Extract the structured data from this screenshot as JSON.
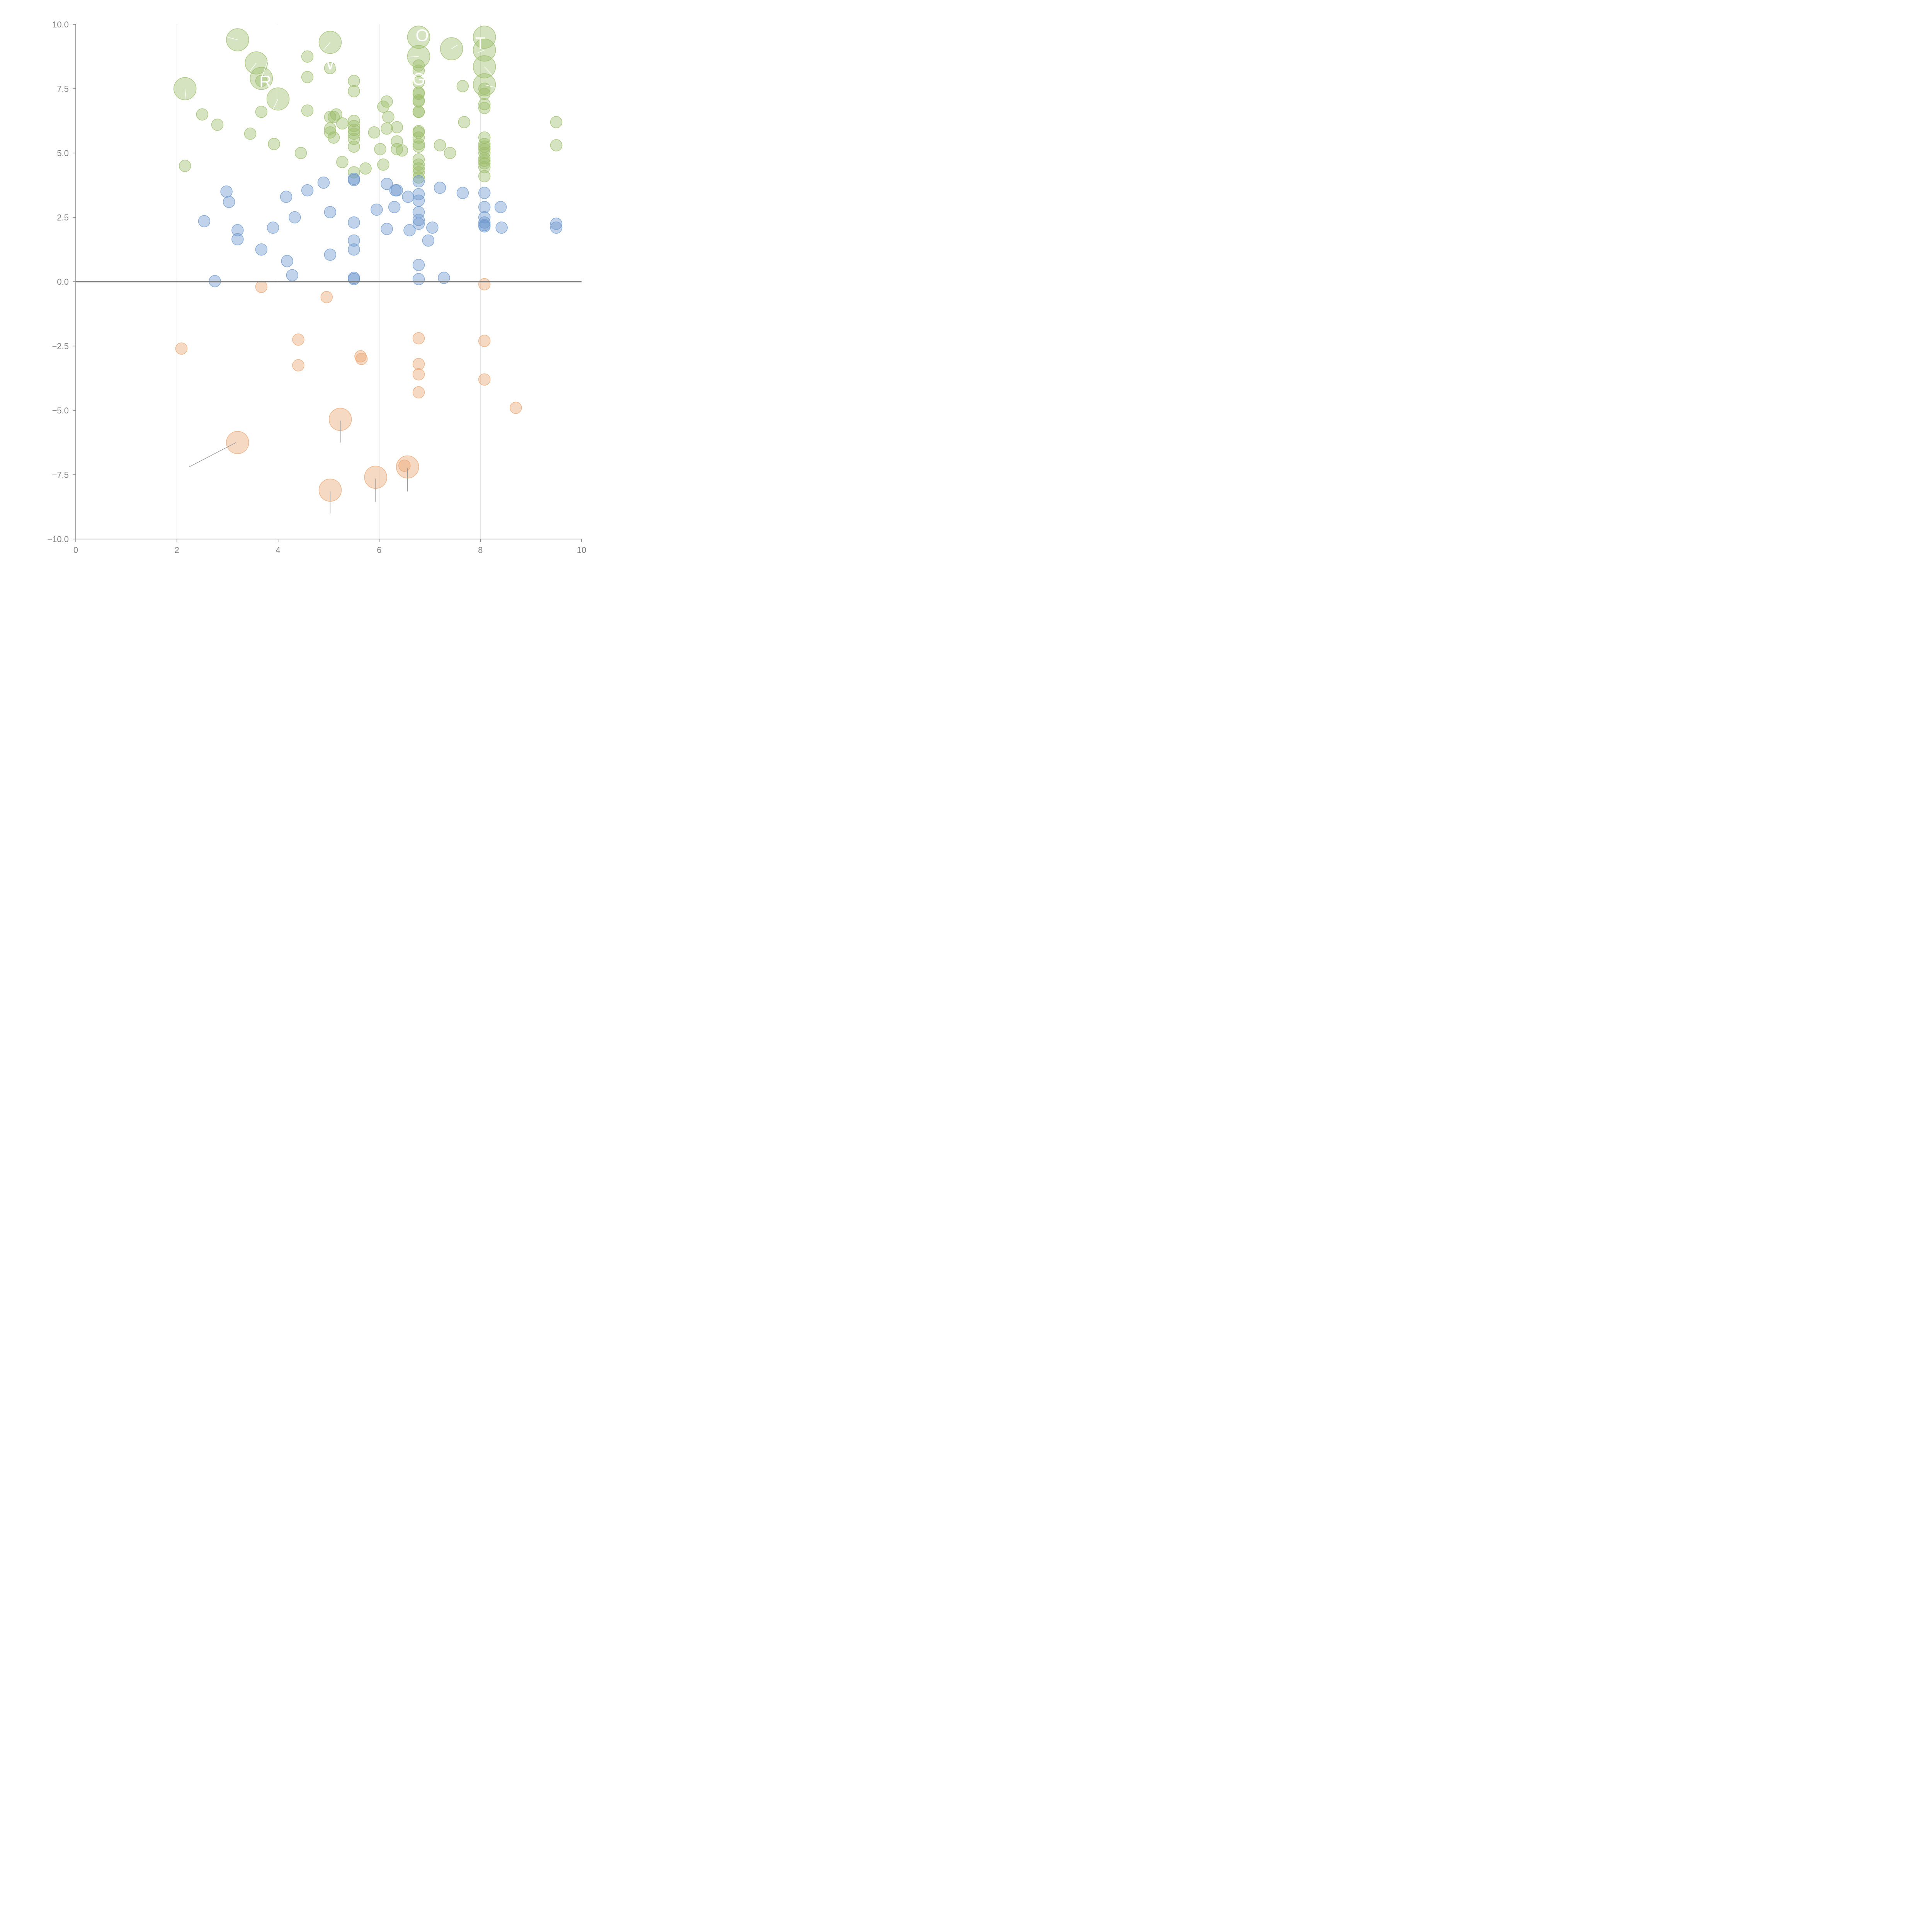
{
  "chart_data": {
    "type": "scatter",
    "title": "",
    "xlabel": "",
    "ylabel": "",
    "xlim": [
      0,
      10
    ],
    "ylim": [
      -10,
      10
    ],
    "x_ticks": [
      "0",
      "2",
      "4",
      "6",
      "8",
      "10"
    ],
    "y_ticks": [
      "10.0",
      "7.5",
      "5.0",
      "2.5",
      "0.0",
      "−2.5",
      "−5.0",
      "−7.5",
      "−10.0"
    ],
    "grid": "vertical",
    "baseline": 0,
    "series": [
      {
        "color": "#9cbd6a",
        "points": [
          [
            3.2,
            9.4,
            "large"
          ],
          [
            5.03,
            9.3,
            "large"
          ],
          [
            3.57,
            8.5,
            "large"
          ],
          [
            3.67,
            7.9,
            "large"
          ],
          [
            2.16,
            7.5,
            "large"
          ],
          [
            4.0,
            7.1,
            "large"
          ],
          [
            6.78,
            9.5,
            "large"
          ],
          [
            6.78,
            8.75,
            "large"
          ],
          [
            7.43,
            9.05,
            "large"
          ],
          [
            8.08,
            9.5,
            "large"
          ],
          [
            8.08,
            9.0,
            "large"
          ],
          [
            8.08,
            8.35,
            "large"
          ],
          [
            8.08,
            7.65,
            "large"
          ],
          [
            4.58,
            8.75
          ],
          [
            4.58,
            7.95
          ],
          [
            4.58,
            6.65
          ],
          [
            5.03,
            8.3
          ],
          [
            3.67,
            6.6
          ],
          [
            3.67,
            7.8
          ],
          [
            2.5,
            6.5
          ],
          [
            2.8,
            6.1
          ],
          [
            3.45,
            5.75
          ],
          [
            3.92,
            5.35
          ],
          [
            4.45,
            5.0
          ],
          [
            2.16,
            4.5
          ],
          [
            5.03,
            6.4
          ],
          [
            5.1,
            6.4
          ],
          [
            5.15,
            6.5
          ],
          [
            5.03,
            5.95
          ],
          [
            5.03,
            5.8
          ],
          [
            5.1,
            5.6
          ],
          [
            5.27,
            6.15
          ],
          [
            5.27,
            4.65
          ],
          [
            5.5,
            7.8
          ],
          [
            5.5,
            7.4
          ],
          [
            5.5,
            6.25
          ],
          [
            5.5,
            6.05
          ],
          [
            5.5,
            5.9
          ],
          [
            5.5,
            5.75
          ],
          [
            5.5,
            5.55
          ],
          [
            5.5,
            5.25
          ],
          [
            5.5,
            4.25
          ],
          [
            5.73,
            4.4
          ],
          [
            5.9,
            5.8
          ],
          [
            6.02,
            5.15
          ],
          [
            6.08,
            4.55
          ],
          [
            6.08,
            6.8
          ],
          [
            6.15,
            7.0
          ],
          [
            6.18,
            6.4
          ],
          [
            6.15,
            5.95
          ],
          [
            6.35,
            6.0
          ],
          [
            6.35,
            5.45
          ],
          [
            6.35,
            5.15
          ],
          [
            6.45,
            5.1
          ],
          [
            6.78,
            8.4
          ],
          [
            6.78,
            8.2
          ],
          [
            6.78,
            7.75
          ],
          [
            6.78,
            7.35
          ],
          [
            6.78,
            7.3
          ],
          [
            6.78,
            7.05
          ],
          [
            6.78,
            7.0
          ],
          [
            6.78,
            6.6
          ],
          [
            6.78,
            6.6
          ],
          [
            6.78,
            5.85
          ],
          [
            6.78,
            5.8
          ],
          [
            6.78,
            5.6
          ],
          [
            6.78,
            5.35
          ],
          [
            6.78,
            5.25
          ],
          [
            6.78,
            4.75
          ],
          [
            6.78,
            4.55
          ],
          [
            6.78,
            4.4
          ],
          [
            6.78,
            4.25
          ],
          [
            6.78,
            4.05
          ],
          [
            7.2,
            5.3
          ],
          [
            7.4,
            5.0
          ],
          [
            7.65,
            7.6
          ],
          [
            7.68,
            6.2
          ],
          [
            8.08,
            7.5
          ],
          [
            8.08,
            7.3
          ],
          [
            8.08,
            6.9
          ],
          [
            8.08,
            6.75
          ],
          [
            8.08,
            5.6
          ],
          [
            8.08,
            5.35
          ],
          [
            8.08,
            5.25
          ],
          [
            8.08,
            5.15
          ],
          [
            8.08,
            5.0
          ],
          [
            8.08,
            4.8
          ],
          [
            8.08,
            4.7
          ],
          [
            8.08,
            4.6
          ],
          [
            8.08,
            4.45
          ],
          [
            8.08,
            4.1
          ],
          [
            9.5,
            6.2
          ],
          [
            9.5,
            5.3
          ]
        ]
      },
      {
        "color": "#6b97cc",
        "points": [
          [
            2.98,
            3.5
          ],
          [
            3.03,
            3.1
          ],
          [
            2.54,
            2.35
          ],
          [
            3.2,
            2.0
          ],
          [
            3.2,
            1.65
          ],
          [
            2.75,
            0.02
          ],
          [
            3.67,
            1.25
          ],
          [
            3.9,
            2.1
          ],
          [
            4.16,
            3.3
          ],
          [
            4.33,
            2.5
          ],
          [
            4.18,
            0.8
          ],
          [
            4.28,
            0.25
          ],
          [
            4.58,
            3.55
          ],
          [
            4.9,
            3.85
          ],
          [
            5.03,
            2.7
          ],
          [
            5.03,
            1.05
          ],
          [
            5.5,
            4.0
          ],
          [
            5.5,
            3.95
          ],
          [
            5.5,
            2.3
          ],
          [
            5.5,
            1.6
          ],
          [
            5.5,
            1.25
          ],
          [
            5.5,
            0.15
          ],
          [
            5.5,
            0.1
          ],
          [
            5.95,
            2.8
          ],
          [
            6.15,
            3.8
          ],
          [
            6.15,
            2.05
          ],
          [
            6.32,
            3.55
          ],
          [
            6.35,
            3.55
          ],
          [
            6.3,
            2.9
          ],
          [
            6.57,
            3.3
          ],
          [
            6.6,
            2.0
          ],
          [
            6.78,
            3.9
          ],
          [
            6.78,
            3.4
          ],
          [
            6.78,
            3.15
          ],
          [
            6.78,
            2.7
          ],
          [
            6.78,
            2.4
          ],
          [
            6.78,
            2.25
          ],
          [
            6.78,
            0.65
          ],
          [
            6.78,
            0.1
          ],
          [
            6.97,
            1.6
          ],
          [
            7.05,
            2.1
          ],
          [
            7.2,
            3.65
          ],
          [
            7.28,
            0.15
          ],
          [
            7.65,
            3.45
          ],
          [
            8.08,
            3.45
          ],
          [
            8.08,
            2.9
          ],
          [
            8.08,
            2.5
          ],
          [
            8.08,
            2.3
          ],
          [
            8.08,
            2.2
          ],
          [
            8.08,
            2.15
          ],
          [
            8.4,
            2.9
          ],
          [
            8.42,
            2.1
          ],
          [
            9.5,
            2.25
          ],
          [
            9.5,
            2.1
          ]
        ]
      },
      {
        "color": "#e9a470",
        "points": [
          [
            3.67,
            -0.2
          ],
          [
            4.96,
            -0.6
          ],
          [
            4.4,
            -2.25
          ],
          [
            4.4,
            -3.25
          ],
          [
            2.09,
            -2.6
          ],
          [
            5.63,
            -2.9
          ],
          [
            5.65,
            -3.0
          ],
          [
            6.78,
            -2.2
          ],
          [
            6.78,
            -3.2
          ],
          [
            6.78,
            -3.6
          ],
          [
            6.78,
            -4.3
          ],
          [
            8.08,
            -0.1
          ],
          [
            8.08,
            -2.3
          ],
          [
            8.08,
            -3.8
          ],
          [
            8.7,
            -4.9
          ],
          [
            6.5,
            -7.15
          ],
          [
            3.2,
            -6.25,
            "large"
          ],
          [
            5.23,
            -5.35,
            "large"
          ],
          [
            5.03,
            -8.1,
            "large"
          ],
          [
            5.93,
            -7.6,
            "large"
          ],
          [
            6.56,
            -7.2,
            "large"
          ]
        ]
      }
    ],
    "annotations": [
      "R",
      "W",
      "O",
      "G",
      "T"
    ]
  }
}
